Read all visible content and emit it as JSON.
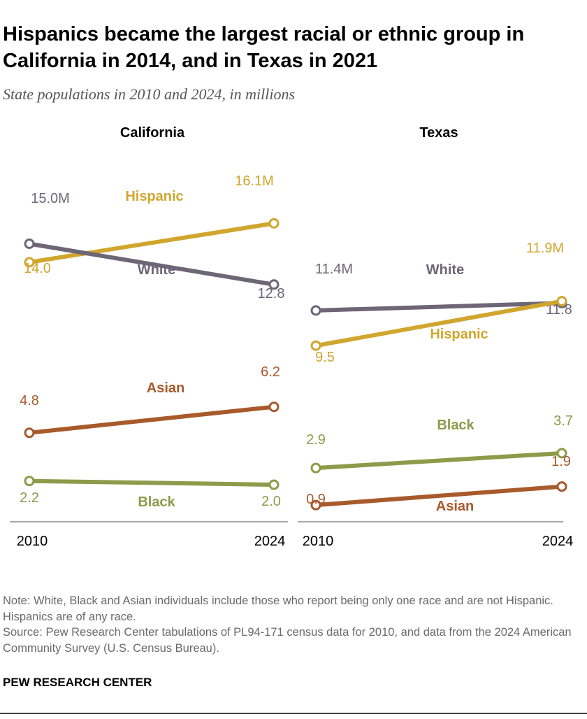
{
  "title": "Hispanics became the largest racial or ethnic group in California in 2014, and in Texas in 2021",
  "subtitle": "State populations in 2010 and 2024, in millions",
  "colors": {
    "Hispanic": "#d0a62e",
    "White": "#6e6577",
    "Asian": "#a85a2a",
    "Black": "#8d9b4a"
  },
  "chart_data": [
    {
      "type": "line",
      "title": "California",
      "x": [
        "2010",
        "2024"
      ],
      "series": [
        {
          "name": "Hispanic",
          "values": [
            14.0,
            16.1
          ],
          "labels": [
            "14.0",
            "16.1M"
          ]
        },
        {
          "name": "White",
          "values": [
            15.0,
            12.8
          ],
          "labels": [
            "15.0M",
            "12.8"
          ]
        },
        {
          "name": "Asian",
          "values": [
            4.8,
            6.2
          ],
          "labels": [
            "4.8",
            "6.2"
          ]
        },
        {
          "name": "Black",
          "values": [
            2.2,
            2.0
          ],
          "labels": [
            "2.2",
            "2.0"
          ]
        }
      ]
    },
    {
      "type": "line",
      "title": "Texas",
      "x": [
        "2010",
        "2024"
      ],
      "series": [
        {
          "name": "White",
          "values": [
            11.4,
            11.8
          ],
          "labels": [
            "11.4M",
            "11.8"
          ]
        },
        {
          "name": "Hispanic",
          "values": [
            9.5,
            11.9
          ],
          "labels": [
            "9.5",
            "11.9M"
          ]
        },
        {
          "name": "Black",
          "values": [
            2.9,
            3.7
          ],
          "labels": [
            "2.9",
            "3.7"
          ]
        },
        {
          "name": "Asian",
          "values": [
            0.9,
            1.9
          ],
          "labels": [
            "0.9",
            "1.9"
          ]
        }
      ]
    }
  ],
  "note": "Note: White, Black and Asian individuals include those who report being only one race and are not Hispanic. Hispanics are of any race.",
  "source": "Source: Pew Research Center tabulations of PL94-171 census data for 2010, and data from the 2024 American Community Survey (U.S. Census Bureau).",
  "org": "PEW RESEARCH CENTER"
}
